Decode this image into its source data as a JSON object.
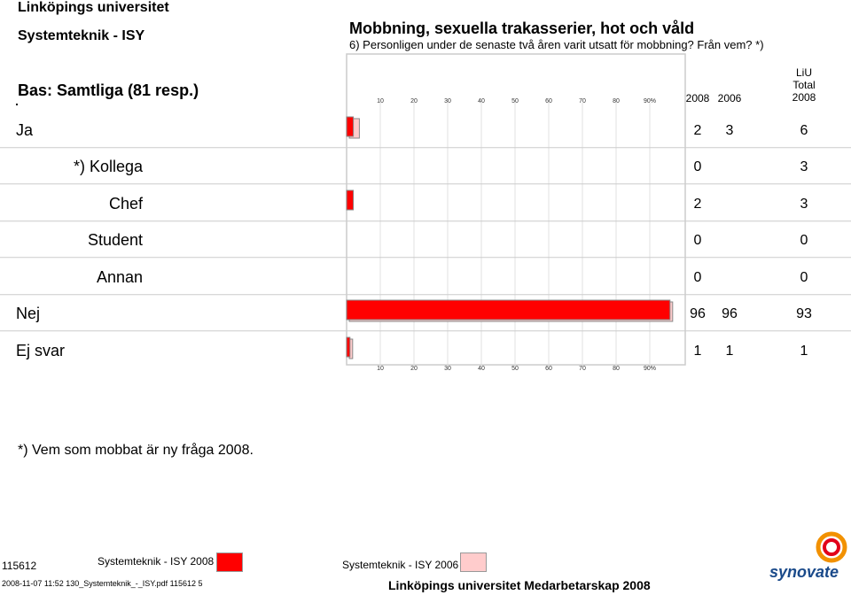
{
  "header": {
    "university": "Linköpings universitet",
    "department": "Systemteknik - ISY",
    "base": "Bas: Samtliga (81 resp.)",
    "title": "Mobbning, sexuella trakasserier, hot och våld",
    "question": "6) Personligen under de senaste två åren varit utsatt för mobbning? Från vem? *)"
  },
  "columns": {
    "y2008": "2008",
    "y2006": "2006",
    "liu_line1": "LiU",
    "liu_line2": "Total",
    "liu_line3": "2008"
  },
  "colors": {
    "series_2008": "#ff0000",
    "series_2006": "#ffcccc",
    "grid": "#e0e0e0",
    "divider": "#cccccc"
  },
  "chart_data": {
    "type": "bar",
    "orientation": "horizontal",
    "categories": [
      "Ja",
      "*) Kollega",
      "Chef",
      "Student",
      "Annan",
      "Nej",
      "Ej svar"
    ],
    "indent": [
      false,
      true,
      true,
      true,
      true,
      false,
      false
    ],
    "series": [
      {
        "name": "Systemteknik - ISY 2008",
        "values": [
          2,
          0,
          2,
          0,
          0,
          96,
          1
        ],
        "color": "#ff0000"
      },
      {
        "name": "Systemteknik - ISY 2006",
        "values": [
          3,
          null,
          null,
          null,
          null,
          96,
          1
        ],
        "color": "#ffcccc"
      }
    ],
    "liu_total_2008": [
      6,
      3,
      3,
      0,
      0,
      93,
      1
    ],
    "table_2008": [
      "2",
      "0",
      "2",
      "0",
      "0",
      "96",
      "1"
    ],
    "table_2006": [
      "3",
      "",
      "",
      "",
      "",
      "96",
      "1"
    ],
    "table_liu": [
      "6",
      "3",
      "3",
      "0",
      "0",
      "93",
      "1"
    ],
    "xticks": [
      "10",
      "20",
      "30",
      "40",
      "50",
      "60",
      "70",
      "80",
      "90%"
    ],
    "xlim": [
      0,
      100
    ]
  },
  "footnote": "*) Vem som mobbat är ny fråga 2008.",
  "footer": {
    "report_id": "115612",
    "meta": "2008-11-07 11:52 130_Systemteknik_-_ISY.pdf 115612  5",
    "legend_2008": "Systemteknik - ISY 2008",
    "legend_2006": "Systemteknik - ISY 2006",
    "survey": "Linköpings universitet Medarbetarskap 2008",
    "logo": "synovate"
  }
}
